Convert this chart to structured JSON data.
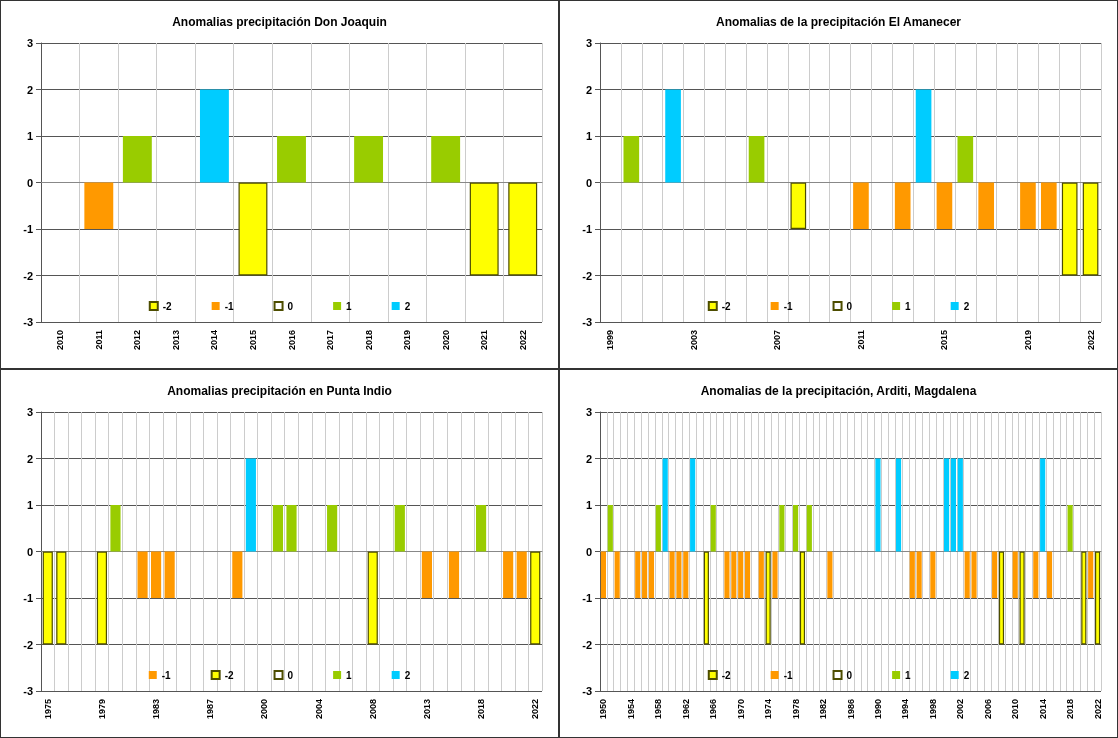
{
  "chart_data": [
    {
      "type": "bar",
      "title": "Anomalias precipitación Don Joaquin",
      "stacked": true,
      "legend": "bottom",
      "grid": true,
      "ylim": [
        -3,
        3
      ],
      "yticks": [
        -3,
        -2,
        -1,
        0,
        1,
        2,
        3
      ],
      "categories": [
        "2010",
        "2011",
        "2012",
        "2013",
        "2014",
        "2015",
        "2016",
        "2017",
        "2018",
        "2019",
        "2020",
        "2021",
        "2022"
      ],
      "series": [
        {
          "name": "-2",
          "color": "#ffff00",
          "values": [
            null,
            null,
            null,
            null,
            null,
            -2,
            null,
            null,
            null,
            null,
            null,
            -2,
            -2
          ]
        },
        {
          "name": "-1",
          "color": "#ff9900",
          "values": [
            null,
            -1,
            null,
            null,
            null,
            null,
            null,
            null,
            null,
            null,
            null,
            null,
            null
          ]
        },
        {
          "name": "0",
          "color": "#ffffff",
          "values": [
            0,
            null,
            null,
            0,
            null,
            null,
            null,
            0,
            null,
            0,
            null,
            null,
            null
          ]
        },
        {
          "name": "1",
          "color": "#99cc00",
          "values": [
            null,
            null,
            1,
            null,
            null,
            null,
            1,
            null,
            1,
            null,
            1,
            null,
            null
          ]
        },
        {
          "name": "2",
          "color": "#00ccff",
          "values": [
            null,
            null,
            null,
            null,
            2,
            null,
            null,
            null,
            null,
            null,
            null,
            null,
            null
          ]
        }
      ]
    },
    {
      "type": "bar",
      "title": "Anomalias de la precipitación El Amanecer",
      "stacked": true,
      "legend": "bottom",
      "grid": true,
      "ylim": [
        -3,
        3
      ],
      "yticks": [
        -3,
        -2,
        -1,
        0,
        1,
        2,
        3
      ],
      "categories": [
        "1999",
        null,
        null,
        null,
        "2003",
        null,
        null,
        null,
        "2007",
        null,
        null,
        null,
        "2011",
        null,
        null,
        null,
        "2015",
        null,
        null,
        null,
        "2019",
        null,
        null,
        "2022"
      ],
      "series": [
        {
          "name": "-2",
          "color": "#ffff00",
          "values": [
            null,
            null,
            null,
            null,
            null,
            null,
            null,
            null,
            null,
            -1,
            null,
            null,
            null,
            null,
            null,
            null,
            null,
            null,
            null,
            null,
            null,
            null,
            -2,
            -2
          ]
        },
        {
          "name": "-1",
          "color": "#ff9900",
          "values": [
            null,
            null,
            null,
            null,
            null,
            null,
            null,
            null,
            null,
            null,
            null,
            null,
            -1,
            null,
            -1,
            null,
            -1,
            null,
            -1,
            null,
            -1,
            -1,
            null,
            null
          ]
        },
        {
          "name": "0",
          "color": "#ffffff",
          "values": [
            0,
            null,
            0,
            null,
            0,
            0,
            0,
            null,
            0,
            null,
            0,
            0,
            null,
            0,
            null,
            null,
            null,
            null,
            null,
            0,
            null,
            null,
            null,
            null
          ]
        },
        {
          "name": "1",
          "color": "#99cc00",
          "values": [
            null,
            1,
            null,
            null,
            null,
            null,
            null,
            1,
            null,
            null,
            null,
            null,
            null,
            null,
            null,
            null,
            null,
            1,
            null,
            null,
            null,
            null,
            null,
            null
          ]
        },
        {
          "name": "2",
          "color": "#00ccff",
          "values": [
            null,
            null,
            null,
            2,
            null,
            null,
            null,
            null,
            null,
            null,
            null,
            null,
            null,
            null,
            null,
            2,
            null,
            null,
            null,
            null,
            null,
            null,
            null,
            null
          ]
        }
      ]
    },
    {
      "type": "bar",
      "title": "Anomalias precipitación en Punta Indio",
      "stacked": true,
      "legend": "bottom",
      "grid": true,
      "ylim": [
        -3,
        3
      ],
      "yticks": [
        -3,
        -2,
        -1,
        0,
        1,
        2,
        3
      ],
      "categories": [
        "1975",
        null,
        null,
        null,
        "1979",
        null,
        null,
        null,
        "1983",
        null,
        null,
        null,
        "1987",
        null,
        null,
        null,
        "2000",
        null,
        null,
        null,
        "2004",
        null,
        null,
        null,
        "2008",
        null,
        null,
        null,
        "2013",
        null,
        null,
        null,
        "2018",
        null,
        null,
        null,
        "2022"
      ],
      "series": [
        {
          "name": "-1",
          "color": "#ff9900",
          "values": [
            null,
            null,
            null,
            null,
            null,
            null,
            null,
            -1,
            -1,
            -1,
            null,
            null,
            null,
            null,
            -1,
            null,
            null,
            null,
            null,
            null,
            null,
            null,
            null,
            null,
            null,
            null,
            null,
            null,
            -1,
            null,
            -1,
            null,
            null,
            null,
            -1,
            -1,
            null
          ]
        },
        {
          "name": "-2",
          "color": "#ffff00",
          "values": [
            -2,
            -2,
            null,
            null,
            -2,
            null,
            null,
            null,
            null,
            null,
            null,
            null,
            null,
            null,
            null,
            null,
            null,
            null,
            null,
            null,
            null,
            null,
            null,
            null,
            -2,
            null,
            null,
            null,
            null,
            null,
            null,
            null,
            null,
            null,
            null,
            null,
            -2
          ]
        },
        {
          "name": "0",
          "color": "#ffffff",
          "values": [
            null,
            null,
            0,
            0,
            null,
            null,
            0,
            null,
            null,
            null,
            0,
            0,
            0,
            0,
            null,
            null,
            0,
            null,
            null,
            0,
            0,
            null,
            0,
            0,
            null,
            0,
            null,
            0,
            null,
            0,
            null,
            0,
            null,
            0,
            null,
            null,
            null
          ]
        },
        {
          "name": "1",
          "color": "#99cc00",
          "values": [
            null,
            null,
            null,
            null,
            null,
            1,
            null,
            null,
            null,
            null,
            null,
            null,
            null,
            null,
            null,
            null,
            null,
            1,
            1,
            null,
            null,
            1,
            null,
            null,
            null,
            null,
            1,
            null,
            null,
            null,
            null,
            null,
            1,
            null,
            null,
            null,
            null
          ]
        },
        {
          "name": "2",
          "color": "#00ccff",
          "values": [
            null,
            null,
            null,
            null,
            null,
            null,
            null,
            null,
            null,
            null,
            null,
            null,
            null,
            null,
            null,
            2,
            null,
            null,
            null,
            null,
            null,
            null,
            null,
            null,
            null,
            null,
            null,
            null,
            null,
            null,
            null,
            null,
            null,
            null,
            null,
            null,
            null
          ]
        }
      ]
    },
    {
      "type": "bar",
      "title": "Anomalias de la precipitación, Arditi, Magdalena",
      "stacked": true,
      "legend": "bottom",
      "grid": true,
      "ylim": [
        -3,
        3
      ],
      "yticks": [
        -3,
        -2,
        -1,
        0,
        1,
        2,
        3
      ],
      "categories": [
        "1950",
        null,
        null,
        null,
        "1954",
        null,
        null,
        null,
        "1958",
        null,
        null,
        null,
        "1962",
        null,
        null,
        null,
        "1966",
        null,
        null,
        null,
        "1970",
        null,
        null,
        null,
        "1974",
        null,
        null,
        null,
        "1978",
        null,
        null,
        null,
        "1982",
        null,
        null,
        null,
        "1986",
        null,
        null,
        null,
        "1990",
        null,
        null,
        null,
        "1994",
        null,
        null,
        null,
        "1998",
        null,
        null,
        null,
        "2002",
        null,
        null,
        null,
        "2006",
        null,
        null,
        null,
        "2010",
        null,
        null,
        null,
        "2014",
        null,
        null,
        null,
        "2018",
        null,
        null,
        null,
        "2022"
      ],
      "series": [
        {
          "name": "-2",
          "color": "#ffff00",
          "values": [
            null,
            null,
            null,
            null,
            null,
            null,
            null,
            null,
            null,
            null,
            null,
            null,
            null,
            null,
            null,
            -2,
            null,
            null,
            null,
            null,
            null,
            null,
            null,
            null,
            -2,
            null,
            null,
            null,
            null,
            -2,
            null,
            null,
            null,
            null,
            null,
            null,
            null,
            null,
            null,
            null,
            null,
            null,
            null,
            null,
            null,
            null,
            null,
            null,
            null,
            null,
            null,
            null,
            null,
            null,
            null,
            null,
            null,
            null,
            -2,
            null,
            null,
            -2,
            null,
            null,
            null,
            null,
            null,
            null,
            null,
            null,
            -2,
            null,
            -2
          ]
        },
        {
          "name": "-1",
          "color": "#ff9900",
          "values": [
            -1,
            null,
            -1,
            null,
            null,
            -1,
            -1,
            -1,
            null,
            null,
            -1,
            -1,
            -1,
            null,
            null,
            null,
            null,
            null,
            -1,
            -1,
            -1,
            -1,
            null,
            -1,
            null,
            -1,
            null,
            null,
            null,
            null,
            null,
            null,
            null,
            -1,
            null,
            null,
            null,
            null,
            null,
            null,
            null,
            null,
            null,
            null,
            null,
            -1,
            -1,
            null,
            -1,
            null,
            null,
            null,
            null,
            -1,
            -1,
            null,
            null,
            -1,
            null,
            null,
            -1,
            null,
            null,
            -1,
            null,
            -1,
            null,
            null,
            null,
            null,
            null,
            -1,
            null
          ]
        },
        {
          "name": "0",
          "color": "#ffffff",
          "values": [
            null,
            null,
            null,
            0,
            0,
            null,
            null,
            null,
            null,
            null,
            null,
            null,
            null,
            null,
            0,
            null,
            null,
            0,
            null,
            null,
            null,
            null,
            0,
            null,
            null,
            null,
            null,
            0,
            null,
            null,
            null,
            0,
            0,
            null,
            0,
            0,
            0,
            0,
            0,
            0,
            null,
            0,
            0,
            null,
            0,
            null,
            null,
            0,
            null,
            0,
            null,
            null,
            null,
            null,
            null,
            0,
            0,
            null,
            null,
            0,
            null,
            null,
            0,
            null,
            null,
            null,
            0,
            0,
            null,
            0,
            null,
            null,
            null
          ]
        },
        {
          "name": "1",
          "color": "#99cc00",
          "values": [
            null,
            1,
            null,
            null,
            null,
            null,
            null,
            null,
            1,
            null,
            null,
            null,
            null,
            null,
            null,
            null,
            1,
            null,
            null,
            null,
            null,
            null,
            null,
            null,
            null,
            null,
            1,
            null,
            1,
            null,
            1,
            null,
            null,
            null,
            null,
            null,
            null,
            null,
            null,
            null,
            null,
            null,
            null,
            null,
            null,
            null,
            null,
            null,
            null,
            null,
            null,
            null,
            null,
            null,
            null,
            null,
            null,
            null,
            null,
            null,
            null,
            null,
            null,
            null,
            null,
            null,
            null,
            null,
            1,
            null,
            null,
            null,
            null
          ]
        },
        {
          "name": "2",
          "color": "#00ccff",
          "values": [
            null,
            null,
            null,
            null,
            null,
            null,
            null,
            null,
            null,
            2,
            null,
            null,
            null,
            2,
            null,
            null,
            null,
            null,
            null,
            null,
            null,
            null,
            null,
            null,
            null,
            null,
            null,
            null,
            null,
            null,
            null,
            null,
            null,
            null,
            null,
            null,
            null,
            null,
            null,
            null,
            2,
            null,
            null,
            2,
            null,
            null,
            null,
            null,
            null,
            null,
            2,
            2,
            2,
            null,
            null,
            null,
            null,
            null,
            null,
            null,
            null,
            null,
            null,
            null,
            2,
            null,
            null,
            null,
            null,
            null,
            null,
            null,
            null
          ]
        }
      ]
    }
  ]
}
